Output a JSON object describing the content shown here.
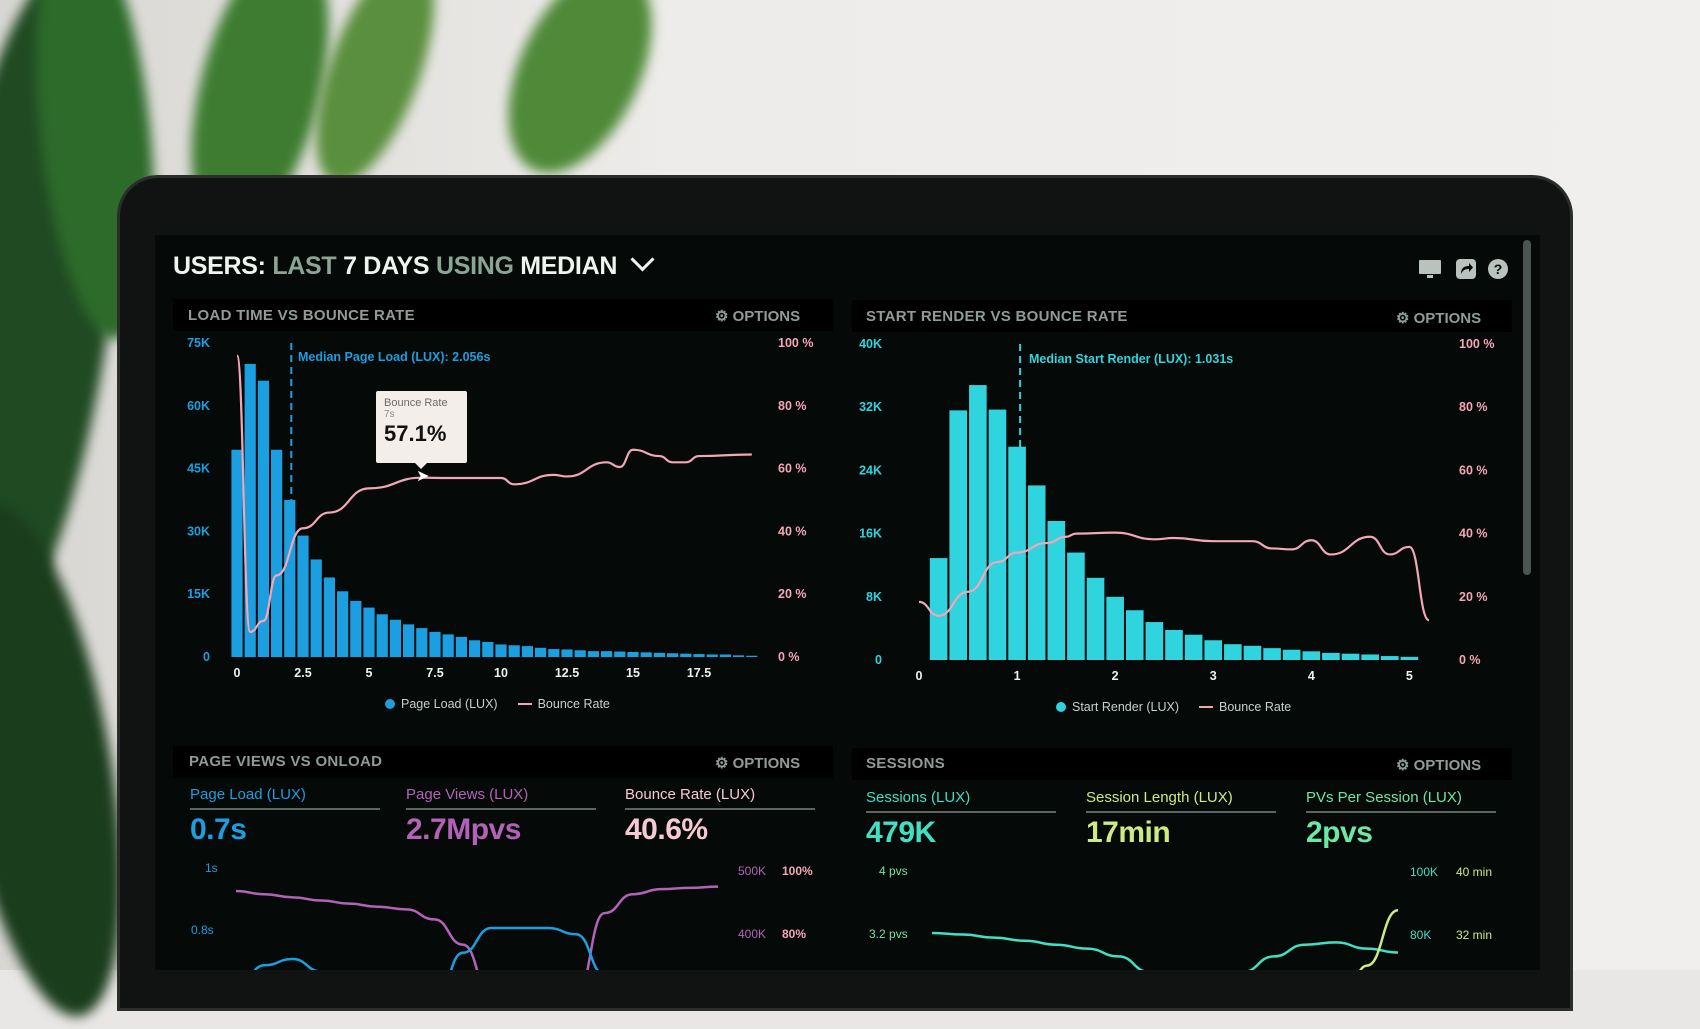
{
  "header": {
    "title_parts": [
      "USERS:",
      "LAST",
      "7 DAYS",
      "USING",
      "MEDIAN"
    ],
    "icons": [
      "monitor-icon",
      "share-icon",
      "help-icon"
    ]
  },
  "colors": {
    "page_load": "#1b9fe0",
    "start_render": "#2fd4de",
    "bounce_rate": "#f3a6b6",
    "page_views": "#b462b8",
    "sessions": "#3fe0c4",
    "session_length": "#cdeb7e",
    "pvs_per_session": "#6ee6a4"
  },
  "panels": {
    "load_time": {
      "title": "LOAD TIME VS BOUNCE RATE",
      "options_label": "OPTIONS",
      "median_label": "Median Page Load (LUX): 2.056s",
      "legend": [
        "Page Load (LUX)",
        "Bounce Rate"
      ],
      "tooltip": {
        "title": "Bounce Rate",
        "x": "7s",
        "value": "57.1%"
      }
    },
    "start_render": {
      "title": "START RENDER VS BOUNCE RATE",
      "options_label": "OPTIONS",
      "median_label": "Median Start Render (LUX): 1.031s",
      "legend": [
        "Start Render (LUX)",
        "Bounce Rate"
      ]
    },
    "page_views": {
      "title": "PAGE VIEWS VS ONLOAD",
      "options_label": "OPTIONS",
      "metrics": [
        {
          "label": "Page Load (LUX)",
          "value": "0.7s"
        },
        {
          "label": "Page Views (LUX)",
          "value": "2.7Mpvs"
        },
        {
          "label": "Bounce Rate (LUX)",
          "value": "40.6%"
        }
      ],
      "axis": {
        "left": [
          "1s",
          "0.8s"
        ],
        "right_views": [
          "500K",
          "400K"
        ],
        "right_bounce": [
          "100%",
          "80%"
        ]
      }
    },
    "sessions": {
      "title": "SESSIONS",
      "options_label": "OPTIONS",
      "metrics": [
        {
          "label": "Sessions (LUX)",
          "value": "479K"
        },
        {
          "label": "Session Length (LUX)",
          "value": "17min"
        },
        {
          "label": "PVs Per Session (LUX)",
          "value": "2pvs"
        }
      ],
      "axis": {
        "left": [
          "4 pvs",
          "3.2 pvs"
        ],
        "right_sessions": [
          "100K",
          "80K"
        ],
        "right_length": [
          "40 min",
          "32 min"
        ]
      }
    }
  },
  "chart_data": [
    {
      "type": "bar",
      "title": "LOAD TIME VS BOUNCE RATE",
      "xlim": [
        0,
        20
      ],
      "xticks": [
        "0",
        "2.5",
        "5",
        "7.5",
        "10",
        "12.5",
        "15",
        "17.5"
      ],
      "ylim": [
        0,
        75000
      ],
      "yticks": [
        "0",
        "15K",
        "30K",
        "45K",
        "60K",
        "75K"
      ],
      "y2lim": [
        0,
        100
      ],
      "y2ticks": [
        "0 %",
        "20 %",
        "40 %",
        "60 %",
        "80 %",
        "100 %"
      ],
      "median": 2.056,
      "bar_width": 0.5,
      "series": [
        {
          "name": "Page Load (LUX)",
          "type": "bar",
          "x_start": 0,
          "values": [
            49500,
            70000,
            66000,
            49500,
            37500,
            29000,
            23300,
            19000,
            15700,
            13400,
            11800,
            10200,
            8900,
            7800,
            6900,
            6000,
            5400,
            4800,
            4000,
            3600,
            3000,
            2800,
            2600,
            2200,
            1900,
            1800,
            1600,
            1400,
            1400,
            1300,
            1200,
            1100,
            1000,
            900,
            800,
            700,
            600,
            600,
            400,
            300
          ]
        },
        {
          "name": "Bounce Rate",
          "type": "line",
          "axis": "right",
          "points": [
            [
              0,
              96
            ],
            [
              0.5,
              8
            ],
            [
              1,
              11.5
            ],
            [
              1.5,
              26
            ],
            [
              2.5,
              41
            ],
            [
              3.5,
              46
            ],
            [
              5,
              53.7
            ],
            [
              7,
              57.1
            ],
            [
              8,
              57
            ],
            [
              10,
              57
            ],
            [
              10.5,
              55
            ],
            [
              12,
              58
            ],
            [
              12.5,
              57.5
            ],
            [
              14,
              62
            ],
            [
              14.5,
              60.5
            ],
            [
              15,
              66
            ],
            [
              16,
              64
            ],
            [
              16.5,
              62
            ],
            [
              17,
              62
            ],
            [
              17.5,
              64
            ],
            [
              19.5,
              64.5
            ]
          ]
        }
      ]
    },
    {
      "type": "bar",
      "title": "START RENDER VS BOUNCE RATE",
      "xlim": [
        0,
        5.2
      ],
      "xticks": [
        "0",
        "1",
        "2",
        "3",
        "4",
        "5"
      ],
      "ylim": [
        0,
        40000
      ],
      "yticks": [
        "0",
        "8K",
        "16K",
        "24K",
        "32K",
        "40K"
      ],
      "y2lim": [
        0,
        100
      ],
      "y2ticks": [
        "0 %",
        "20 %",
        "40 %",
        "60 %",
        "80 %",
        "100 %"
      ],
      "median": 1.031,
      "bar_width": 0.2,
      "series": [
        {
          "name": "Start Render (LUX)",
          "type": "bar",
          "x_start": 0.2,
          "values": [
            12900,
            31600,
            34800,
            31700,
            27000,
            22100,
            17600,
            13600,
            10400,
            8000,
            6300,
            4800,
            3800,
            3200,
            2500,
            2000,
            1800,
            1500,
            1300,
            1100,
            900,
            800,
            700,
            500,
            400
          ]
        },
        {
          "name": "Bounce Rate",
          "type": "line",
          "axis": "right",
          "points": [
            [
              0,
              18.4
            ],
            [
              0.2,
              14
            ],
            [
              0.5,
              21.6
            ],
            [
              0.8,
              31
            ],
            [
              1,
              34
            ],
            [
              1.3,
              37
            ],
            [
              1.5,
              39
            ],
            [
              1.6,
              40
            ],
            [
              2,
              40.3
            ],
            [
              2.4,
              38.2
            ],
            [
              2.6,
              38.6
            ],
            [
              3,
              37.6
            ],
            [
              3.4,
              37.6
            ],
            [
              3.6,
              35.3
            ],
            [
              3.8,
              35
            ],
            [
              4,
              37.9
            ],
            [
              4.2,
              33.4
            ],
            [
              4.6,
              39
            ],
            [
              4.8,
              33.4
            ],
            [
              5,
              35.8
            ],
            [
              5.2,
              12.6
            ]
          ]
        }
      ]
    },
    {
      "type": "line",
      "title": "PAGE VIEWS VS ONLOAD",
      "series": [
        {
          "name": "Page Views (LUX)",
          "axis": "right",
          "values": [
            465,
            460,
            455,
            450,
            445,
            440,
            436,
            420,
            380,
            300,
            250,
            250,
            300,
            430,
            460,
            468,
            470,
            472
          ]
        },
        {
          "name": "Page Load (LUX)",
          "axis": "left",
          "values": [
            0.6,
            0.68,
            0.7,
            0.66,
            0.58,
            0.5,
            0.5,
            0.55,
            0.72,
            0.8,
            0.8,
            0.8,
            0.78,
            0.65,
            0.5,
            0.5,
            0.55,
            0.66
          ]
        }
      ]
    },
    {
      "type": "line",
      "title": "SESSIONS",
      "series": [
        {
          "name": "PVs Per Session (LUX)",
          "axis": "left",
          "values": [
            3.2,
            3.18,
            3.14,
            3.1,
            3.05,
            3.0,
            2.9,
            2.7,
            2.6,
            2.6,
            2.7,
            2.9,
            3.05,
            3.08,
            3.0,
            2.95
          ]
        },
        {
          "name": "Session Length (LUX)",
          "axis": "right",
          "values": [
            null,
            null,
            null,
            null,
            null,
            null,
            null,
            null,
            null,
            null,
            null,
            null,
            null,
            20,
            28,
            35
          ]
        }
      ]
    }
  ]
}
